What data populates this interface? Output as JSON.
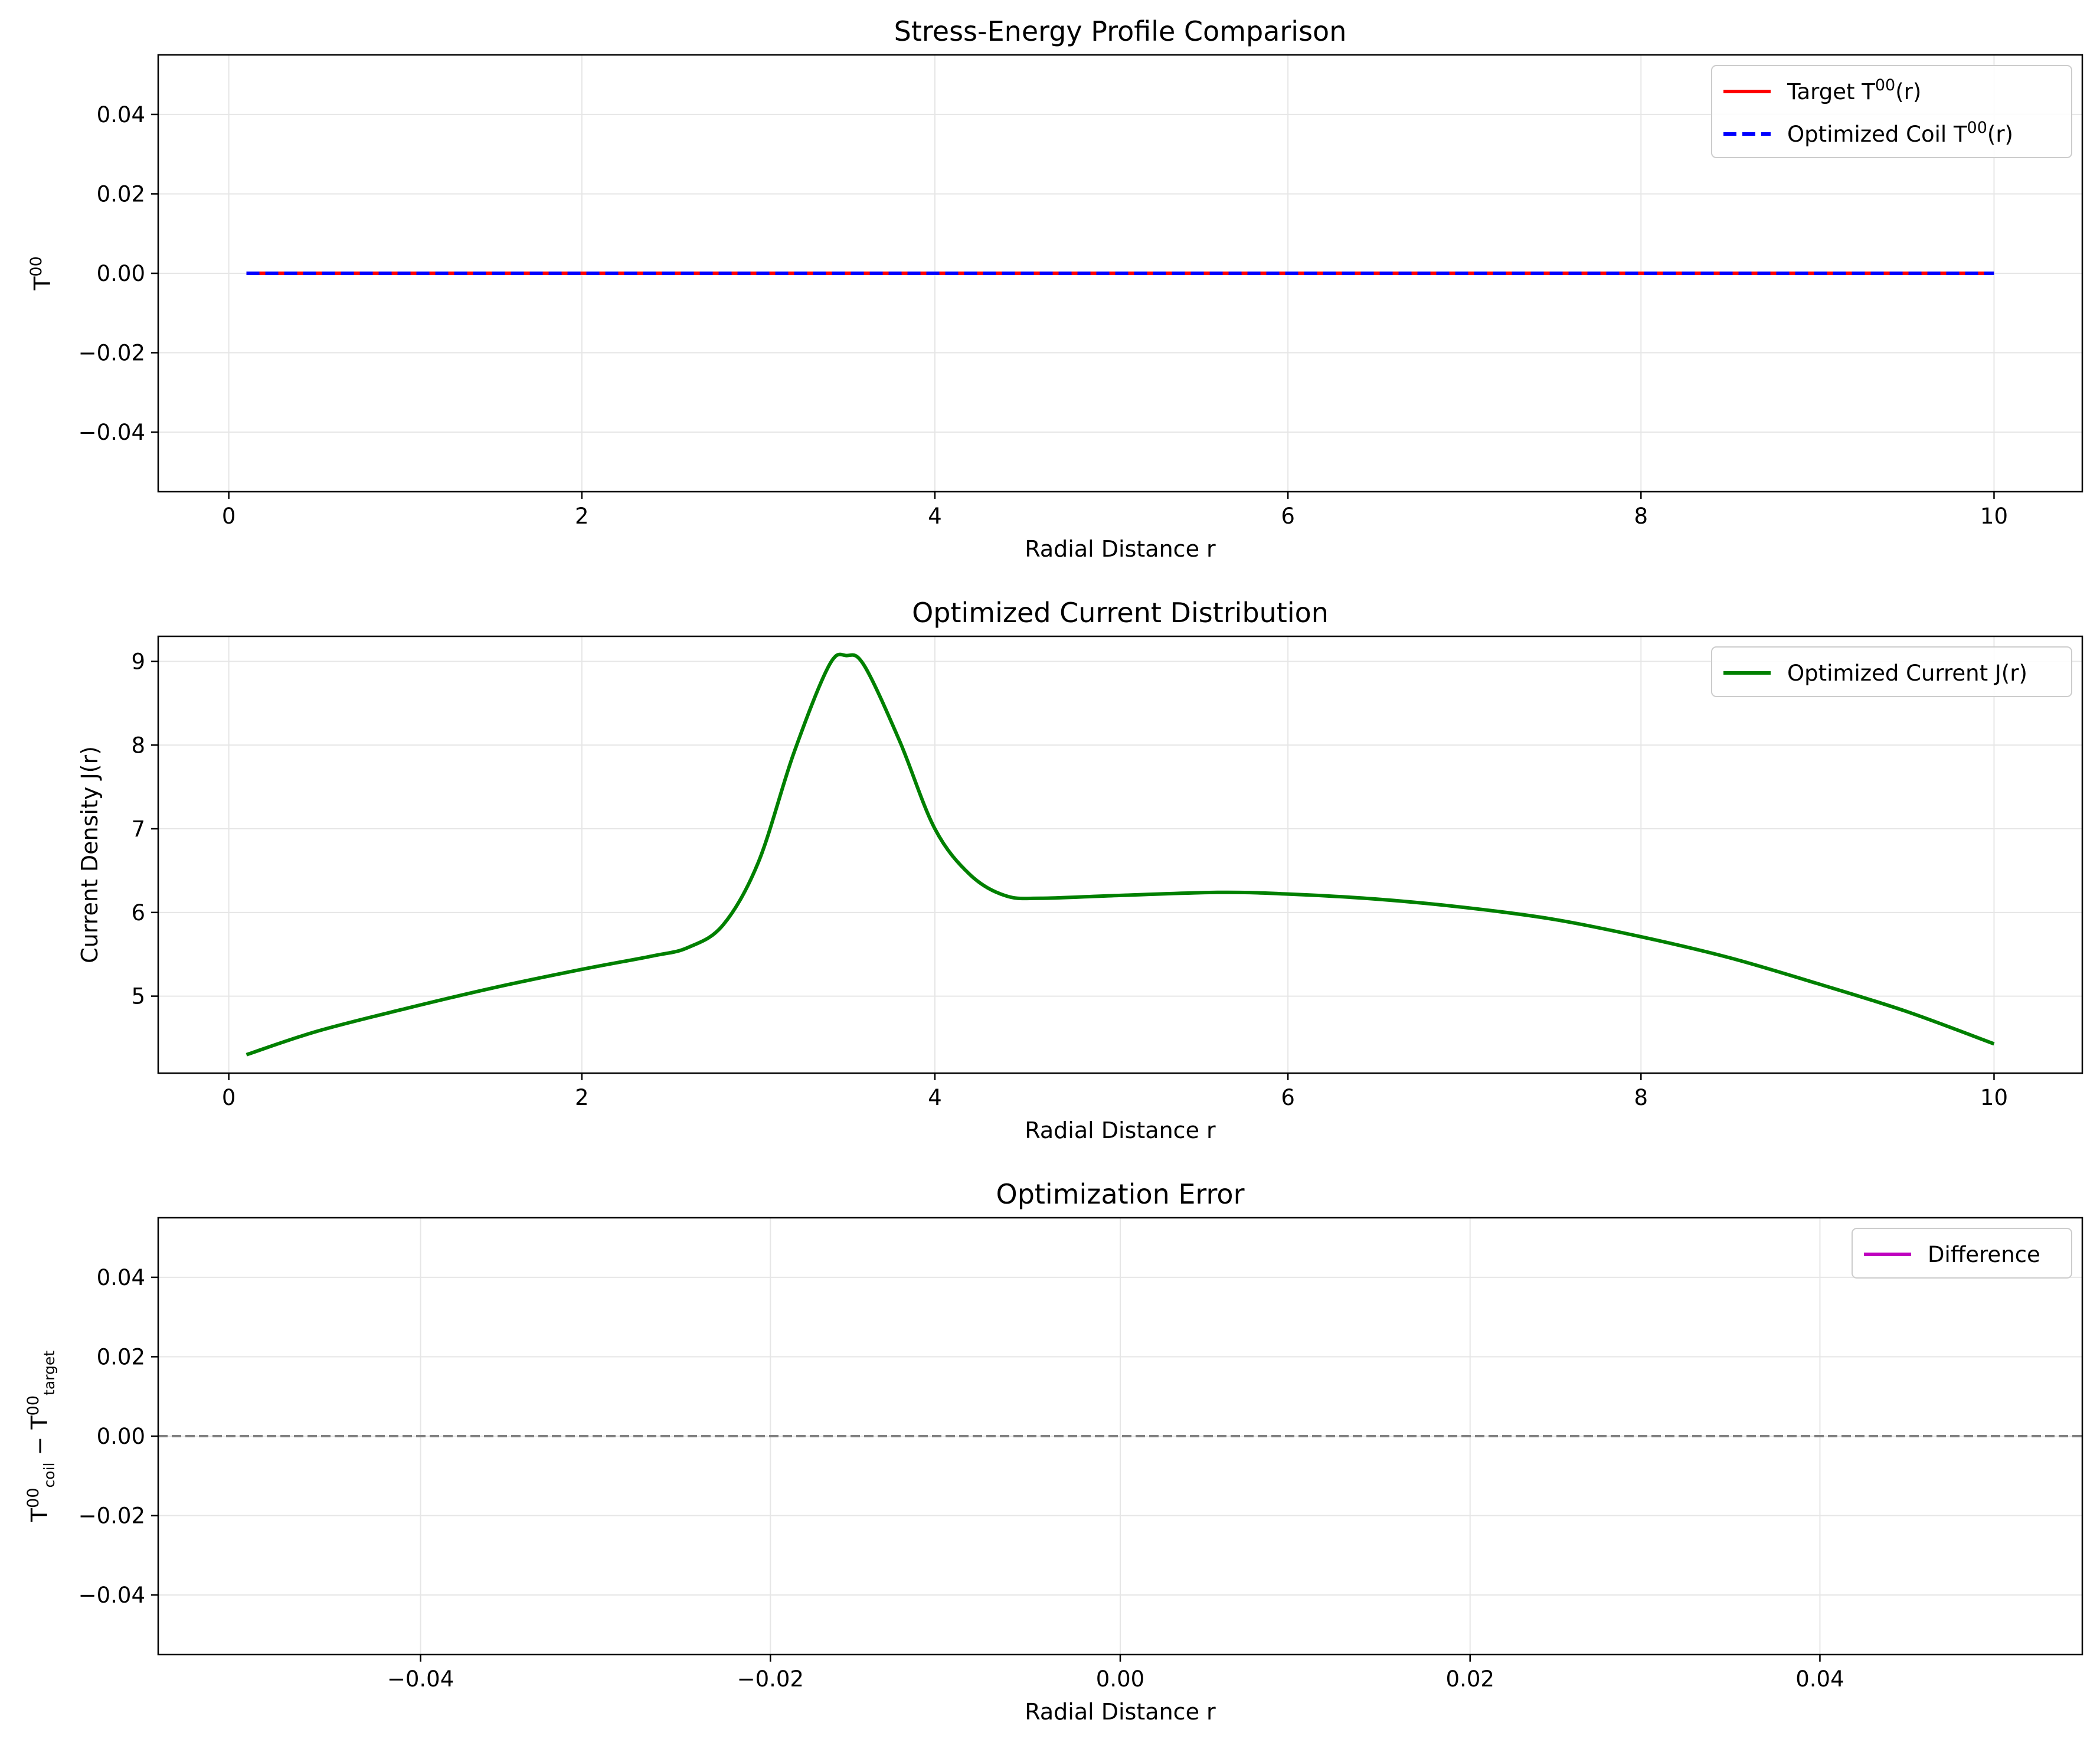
{
  "chart_data": [
    {
      "type": "line",
      "title": "Stress-Energy Profile Comparison",
      "xlabel": "Radial Distance r",
      "ylabel": "T^00",
      "xlim": [
        -0.4,
        10.5
      ],
      "ylim": [
        -0.055,
        0.055
      ],
      "xticks": [
        0,
        2,
        4,
        6,
        8,
        10
      ],
      "yticks": [
        -0.04,
        -0.02,
        0.0,
        0.02,
        0.04
      ],
      "grid": true,
      "legend_position": "top-right",
      "series": [
        {
          "name": "Target T^00(r)",
          "color": "#ff0000",
          "style": "solid",
          "x": [
            0.1,
            10.0
          ],
          "y": [
            0.0,
            0.0
          ]
        },
        {
          "name": "Optimized Coil T^00(r)",
          "color": "#0000ff",
          "style": "dashed",
          "x": [
            0.1,
            10.0
          ],
          "y": [
            0.0,
            0.0
          ]
        }
      ]
    },
    {
      "type": "line",
      "title": "Optimized Current Distribution",
      "xlabel": "Radial Distance r",
      "ylabel": "Current Density J(r)",
      "xlim": [
        -0.4,
        10.5
      ],
      "ylim": [
        4.08,
        9.3
      ],
      "xticks": [
        0,
        2,
        4,
        6,
        8,
        10
      ],
      "yticks": [
        5,
        6,
        7,
        8,
        9
      ],
      "grid": true,
      "legend_position": "top-right",
      "series": [
        {
          "name": "Optimized Current J(r)",
          "color": "#008000",
          "style": "solid",
          "x": [
            0.1,
            0.5,
            1.0,
            1.5,
            2.0,
            2.4,
            2.6,
            2.8,
            3.0,
            3.2,
            3.4,
            3.5,
            3.6,
            3.8,
            4.0,
            4.2,
            4.4,
            4.6,
            5.0,
            5.6,
            6.0,
            6.5,
            7.0,
            7.5,
            8.0,
            8.5,
            9.0,
            9.5,
            10.0
          ],
          "y": [
            4.3,
            4.58,
            4.85,
            5.1,
            5.32,
            5.48,
            5.58,
            5.85,
            6.6,
            7.9,
            8.95,
            9.07,
            8.95,
            8.05,
            7.0,
            6.45,
            6.2,
            6.17,
            6.2,
            6.24,
            6.22,
            6.16,
            6.06,
            5.92,
            5.71,
            5.46,
            5.15,
            4.82,
            4.43
          ]
        }
      ]
    },
    {
      "type": "line",
      "title": "Optimization Error",
      "xlabel": "Radial Distance r",
      "ylabel": "T^00_coil − T^00_target",
      "xlim": [
        -0.055,
        0.055
      ],
      "ylim": [
        -0.055,
        0.055
      ],
      "xticks": [
        -0.04,
        -0.02,
        0.0,
        0.02,
        0.04
      ],
      "yticks": [
        -0.04,
        -0.02,
        0.0,
        0.02,
        0.04
      ],
      "grid": true,
      "legend_position": "top-right",
      "reference_line": {
        "y": 0.0,
        "color": "#808080",
        "style": "dashed"
      },
      "series": [
        {
          "name": "Difference",
          "color": "#bf00bf",
          "style": "solid",
          "x": [],
          "y": []
        }
      ]
    }
  ]
}
